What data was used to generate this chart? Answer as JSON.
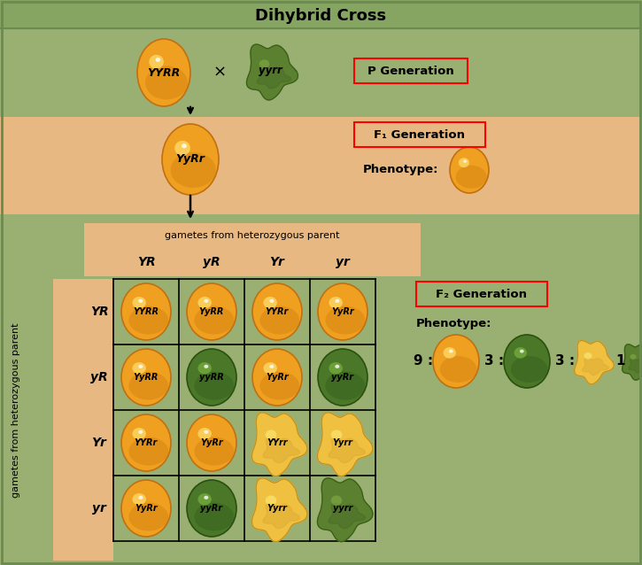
{
  "title": "Dihybrid Cross",
  "bg_outer": "#87a562",
  "bg_p_gen": "#9aaf72",
  "bg_f1_gen": "#e8b882",
  "bg_f2_gen": "#9aaf72",
  "bg_punnett_col": "#e8b882",
  "border_color": "#6a8a50",
  "p_gen_label": "P Generation",
  "f1_gen_label": "F₁ Generation",
  "f2_gen_label": "F₂ Generation",
  "phenotype_label": "Phenotype:",
  "gametes_top_label": "gametes from heterozygous parent",
  "gametes_left_label": "gametes from heterozygous parent",
  "col_labels": [
    "YR",
    "yR",
    "Yr",
    "yr"
  ],
  "row_labels": [
    "YR",
    "yR",
    "Yr",
    "yr"
  ],
  "grid_genotypes": [
    [
      "YYRR",
      "YyRR",
      "YYRr",
      "YyRr"
    ],
    [
      "YyRR",
      "yyRR",
      "YyRr",
      "yyRr"
    ],
    [
      "YYRr",
      "YyRr",
      "YYrr",
      "Yyrr"
    ],
    [
      "YyRr",
      "yyRr",
      "Yyrr",
      "yyrr"
    ]
  ],
  "grid_colors": [
    [
      "yr",
      "yr",
      "yr",
      "yr"
    ],
    [
      "yr",
      "gr",
      "yr",
      "gr"
    ],
    [
      "yr",
      "yr",
      "yw",
      "yw"
    ],
    [
      "yr",
      "gr",
      "yw",
      "gw"
    ]
  ],
  "title_fontsize": 13,
  "label_fontsize": 9.5,
  "grid_fontsize": 7,
  "gamete_fontsize": 8
}
